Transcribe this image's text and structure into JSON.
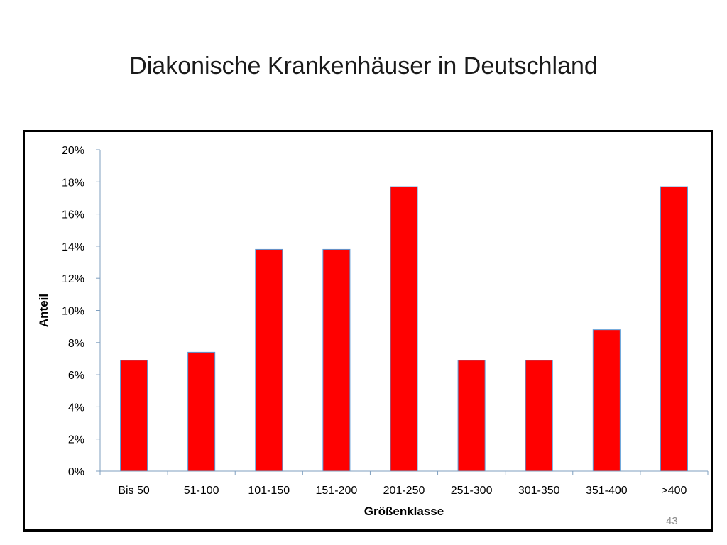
{
  "slide": {
    "title": "Diakonische Krankenhäuser in Deutschland",
    "page_number": "43"
  },
  "chart_data": {
    "type": "bar",
    "title": "",
    "xlabel": "Größenklasse",
    "ylabel": "Anteil",
    "categories": [
      "Bis 50",
      "51-100",
      "101-150",
      "151-200",
      "201-250",
      "251-300",
      "301-350",
      "351-400",
      ">400"
    ],
    "values": [
      0.069,
      0.074,
      0.138,
      0.138,
      0.177,
      0.069,
      0.069,
      0.088,
      0.177
    ],
    "ylim": [
      0,
      0.2
    ],
    "yticks": [
      0,
      0.02,
      0.04,
      0.06,
      0.08,
      0.1,
      0.12,
      0.14,
      0.16,
      0.18,
      0.2
    ],
    "ytick_labels": [
      "0%",
      "2%",
      "4%",
      "6%",
      "8%",
      "10%",
      "12%",
      "14%",
      "16%",
      "18%",
      "20%"
    ],
    "grid": false,
    "legend": "none",
    "colors": {
      "bar_fill": "#ff0000",
      "bar_stroke": "#5b9bd5",
      "axis": "#7f9fbf"
    }
  }
}
